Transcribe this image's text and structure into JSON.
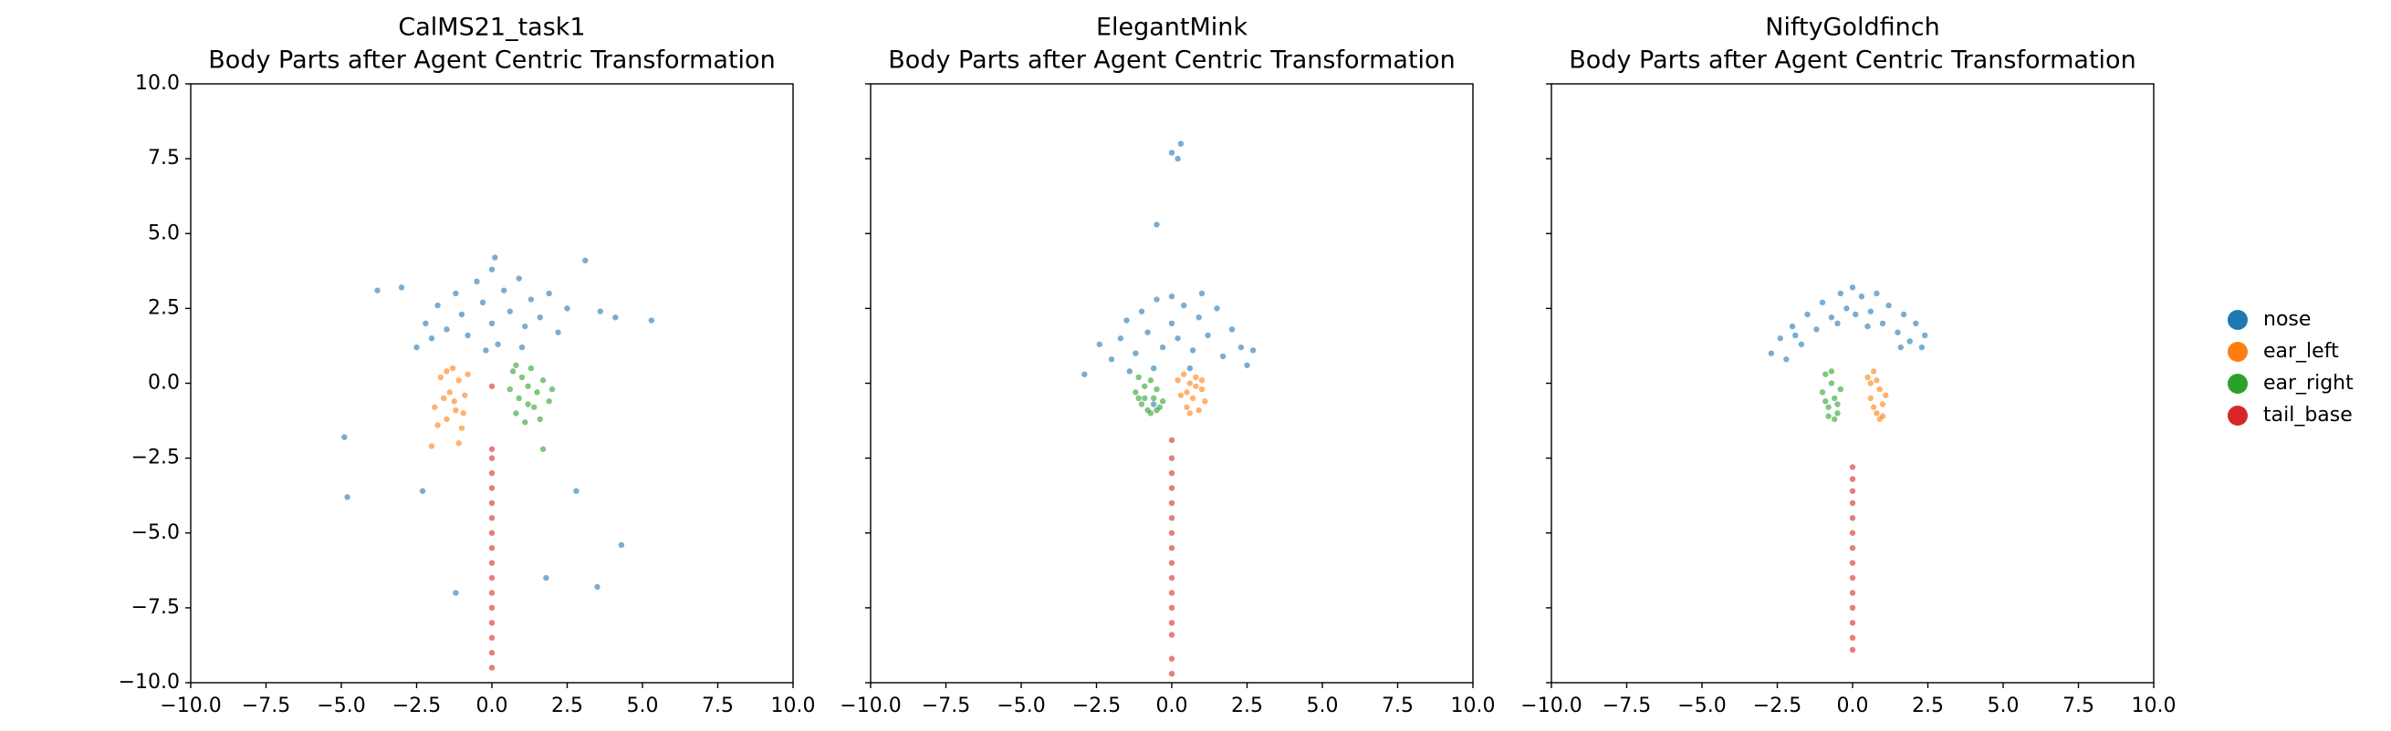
{
  "chart_data": [
    {
      "type": "scatter",
      "title": "CalMS21_task1",
      "subtitle": "Body Parts after Agent Centric Transformation",
      "xlim": [
        -10,
        10
      ],
      "ylim": [
        -10,
        10
      ],
      "xticks": [
        {
          "value": -10,
          "label": "−10.0"
        },
        {
          "value": -7.5,
          "label": "−7.5"
        },
        {
          "value": -5,
          "label": "−5.0"
        },
        {
          "value": -2.5,
          "label": "−2.5"
        },
        {
          "value": 0,
          "label": "0.0"
        },
        {
          "value": 2.5,
          "label": "2.5"
        },
        {
          "value": 5,
          "label": "5.0"
        },
        {
          "value": 7.5,
          "label": "7.5"
        },
        {
          "value": 10,
          "label": "10.0"
        }
      ],
      "yticks": [
        {
          "value": -10,
          "label": "−10.0"
        },
        {
          "value": -7.5,
          "label": "−7.5"
        },
        {
          "value": -5,
          "label": "−5.0"
        },
        {
          "value": -2.5,
          "label": "−2.5"
        },
        {
          "value": 0,
          "label": "0.0"
        },
        {
          "value": 2.5,
          "label": "2.5"
        },
        {
          "value": 5,
          "label": "5.0"
        },
        {
          "value": 7.5,
          "label": "7.5"
        },
        {
          "value": 10,
          "label": "10.0"
        }
      ],
      "legend": "right",
      "series": [
        {
          "name": "nose",
          "color": "#1f77b4",
          "x": [
            -2.2,
            -1.8,
            -1.5,
            -1.2,
            -1.0,
            -0.8,
            -0.5,
            -0.3,
            0,
            0,
            0.2,
            0.4,
            0.6,
            0.9,
            1.1,
            1.3,
            1.6,
            1.9,
            2.2,
            2.5,
            -2.5,
            -0.2,
            1.0,
            0.1,
            -3.0,
            -3.8,
            3.6,
            4.1,
            5.3,
            3.1,
            -4.9,
            -4.8,
            -2.3,
            -1.2,
            1.8,
            3.5,
            4.3,
            2.8,
            -2.0
          ],
          "values": [
            2.0,
            2.6,
            1.8,
            3.0,
            2.3,
            1.6,
            3.4,
            2.7,
            2.0,
            3.8,
            1.3,
            3.1,
            2.4,
            3.5,
            1.9,
            2.8,
            2.2,
            3.0,
            1.7,
            2.5,
            1.2,
            1.1,
            1.2,
            4.2,
            3.2,
            3.1,
            2.4,
            2.2,
            2.1,
            4.1,
            -1.8,
            -3.8,
            -3.6,
            -7.0,
            -6.5,
            -6.8,
            -5.4,
            -3.6,
            1.5
          ]
        },
        {
          "name": "ear_left",
          "color": "#ff7f0e",
          "x": [
            -1.9,
            -1.7,
            -1.5,
            -1.4,
            -1.3,
            -1.2,
            -1.1,
            -1.0,
            -0.9,
            -0.8,
            -1.6,
            -1.8,
            -1.25,
            -0.95,
            -1.5,
            -2.0,
            -1.1
          ],
          "values": [
            -0.8,
            0.2,
            -1.2,
            -0.3,
            0.5,
            -0.9,
            0.1,
            -1.5,
            -0.4,
            0.3,
            -0.5,
            -1.4,
            -0.6,
            -1.0,
            0.4,
            -2.1,
            -2.0
          ]
        },
        {
          "name": "ear_right",
          "color": "#2ca02c",
          "x": [
            0.6,
            0.7,
            0.8,
            0.9,
            1.0,
            1.1,
            1.2,
            1.3,
            1.4,
            1.5,
            1.7,
            1.9,
            1.2,
            0.8,
            1.6,
            2.0,
            1.7
          ],
          "values": [
            -0.2,
            0.4,
            -1.0,
            -0.5,
            0.2,
            -1.3,
            -0.1,
            0.5,
            -0.8,
            -0.3,
            0.1,
            -0.6,
            -0.7,
            0.6,
            -1.2,
            -0.2,
            -2.2
          ]
        },
        {
          "name": "tail_base",
          "color": "#d62728",
          "x": [
            0,
            0,
            0,
            0,
            0,
            0,
            0,
            0,
            0,
            0,
            0,
            0,
            0,
            0,
            0,
            0,
            0
          ],
          "values": [
            -0.1,
            -2.2,
            -2.5,
            -3,
            -3.5,
            -4,
            -4.5,
            -5,
            -5.5,
            -6,
            -6.5,
            -7,
            -7.5,
            -8,
            -8.5,
            -9,
            -9.5
          ]
        }
      ]
    },
    {
      "type": "scatter",
      "title": "ElegantMink",
      "subtitle": "Body Parts after Agent Centric Transformation",
      "xlim": [
        -10,
        10
      ],
      "ylim": [
        -10,
        10
      ],
      "xticks": [
        {
          "value": -10,
          "label": "−10.0"
        },
        {
          "value": -7.5,
          "label": "−7.5"
        },
        {
          "value": -5,
          "label": "−5.0"
        },
        {
          "value": -2.5,
          "label": "−2.5"
        },
        {
          "value": 0,
          "label": "0.0"
        },
        {
          "value": 2.5,
          "label": "2.5"
        },
        {
          "value": 5,
          "label": "5.0"
        },
        {
          "value": 7.5,
          "label": "7.5"
        },
        {
          "value": 10,
          "label": "10.0"
        }
      ],
      "yticks": [
        -10,
        -7.5,
        -5,
        -2.5,
        0,
        2.5,
        5,
        7.5,
        10
      ],
      "series": [
        {
          "name": "nose",
          "color": "#1f77b4",
          "x": [
            -2.0,
            -1.7,
            -1.5,
            -1.2,
            -1.0,
            -0.8,
            -0.5,
            -0.3,
            0,
            0,
            0.2,
            0.4,
            0.7,
            0.9,
            1.2,
            1.5,
            1.7,
            2.0,
            2.3,
            2.5,
            -2.4,
            -0.6,
            0.6,
            -2.9,
            -0.5,
            0,
            0.2,
            0.3,
            -0.6,
            2.7,
            -1.4,
            1.0
          ],
          "values": [
            0.8,
            1.5,
            2.1,
            1.0,
            2.4,
            1.7,
            2.8,
            1.2,
            2.0,
            2.9,
            1.5,
            2.6,
            1.1,
            2.2,
            1.6,
            2.5,
            0.9,
            1.8,
            1.2,
            0.6,
            1.3,
            0.5,
            0.5,
            0.3,
            5.3,
            7.7,
            7.5,
            8.0,
            -0.7,
            1.1,
            0.4,
            3.0
          ]
        },
        {
          "name": "ear_left",
          "color": "#ff7f0e",
          "x": [
            0.2,
            0.3,
            0.4,
            0.5,
            0.6,
            0.7,
            0.8,
            0.9,
            1.0,
            1.1,
            0.5,
            0.8,
            0.6,
            1.0
          ],
          "values": [
            0.1,
            -0.4,
            0.3,
            -0.8,
            0.0,
            -0.5,
            0.2,
            -0.9,
            -0.2,
            -0.6,
            -0.3,
            -0.1,
            -1.0,
            0.1
          ]
        },
        {
          "name": "ear_right",
          "color": "#2ca02c",
          "x": [
            -1.2,
            -1.1,
            -1.0,
            -0.9,
            -0.8,
            -0.7,
            -0.6,
            -0.5,
            -0.4,
            -0.3,
            -0.9,
            -0.7,
            -1.1,
            -0.5
          ],
          "values": [
            -0.3,
            0.2,
            -0.7,
            -0.1,
            -0.9,
            0.1,
            -0.5,
            -0.2,
            -0.8,
            -0.6,
            -0.5,
            -1.0,
            -0.5,
            -0.9
          ]
        },
        {
          "name": "tail_base",
          "color": "#d62728",
          "x": [
            0,
            0,
            0,
            0,
            0,
            0,
            0,
            0,
            0,
            0,
            0,
            0,
            0,
            0,
            0,
            0
          ],
          "values": [
            -1.9,
            -2.5,
            -3,
            -3.5,
            -4,
            -4.5,
            -5,
            -5.5,
            -6,
            -6.5,
            -7,
            -7.5,
            -8,
            -8.4,
            -9.2,
            -9.7
          ]
        }
      ]
    },
    {
      "type": "scatter",
      "title": "NiftyGoldfinch",
      "subtitle": "Body Parts after Agent Centric Transformation",
      "xlim": [
        -10,
        10
      ],
      "ylim": [
        -10,
        10
      ],
      "xticks": [
        {
          "value": -10,
          "label": "−10.0"
        },
        {
          "value": -7.5,
          "label": "−7.5"
        },
        {
          "value": -5,
          "label": "−5.0"
        },
        {
          "value": -2.5,
          "label": "−2.5"
        },
        {
          "value": 0,
          "label": "0.0"
        },
        {
          "value": 2.5,
          "label": "2.5"
        },
        {
          "value": 5,
          "label": "5.0"
        },
        {
          "value": 7.5,
          "label": "7.5"
        },
        {
          "value": 10,
          "label": "10.0"
        }
      ],
      "yticks": [
        -10,
        -7.5,
        -5,
        -2.5,
        0,
        2.5,
        5,
        7.5,
        10
      ],
      "series": [
        {
          "name": "nose",
          "color": "#1f77b4",
          "x": [
            -2.7,
            -2.4,
            -2.2,
            -2.0,
            -1.7,
            -1.5,
            -1.2,
            -1.0,
            -0.7,
            -0.4,
            -0.2,
            0,
            0.1,
            0.3,
            0.6,
            0.8,
            1.0,
            1.2,
            1.5,
            1.7,
            1.9,
            2.1,
            2.3,
            2.4,
            -0.5,
            0.5,
            -1.9,
            1.6
          ],
          "values": [
            1.0,
            1.5,
            0.8,
            1.9,
            1.3,
            2.3,
            1.8,
            2.7,
            2.2,
            3.0,
            2.5,
            3.2,
            2.3,
            2.9,
            2.4,
            3.0,
            2.0,
            2.6,
            1.7,
            2.3,
            1.4,
            2.0,
            1.2,
            1.6,
            2.0,
            1.9,
            1.6,
            1.2
          ]
        },
        {
          "name": "ear_left",
          "color": "#ff7f0e",
          "x": [
            0.5,
            0.6,
            0.7,
            0.8,
            0.9,
            1.0,
            1.1,
            0.7,
            0.9,
            0.8,
            1.0,
            0.6
          ],
          "values": [
            0.2,
            -0.5,
            0.4,
            -1.0,
            -0.2,
            -0.7,
            -0.4,
            -0.8,
            -1.2,
            0.1,
            -1.1,
            0.0
          ]
        },
        {
          "name": "ear_right",
          "color": "#2ca02c",
          "x": [
            -1.0,
            -0.9,
            -0.8,
            -0.7,
            -0.6,
            -0.5,
            -0.4,
            -0.9,
            -0.6,
            -0.7,
            -0.5,
            -0.8
          ],
          "values": [
            -0.3,
            0.3,
            -0.8,
            0.0,
            -0.5,
            -1.0,
            -0.2,
            -0.6,
            -1.2,
            0.4,
            -0.7,
            -1.1
          ]
        },
        {
          "name": "tail_base",
          "color": "#d62728",
          "x": [
            0,
            0,
            0,
            0,
            0,
            0,
            0,
            0,
            0,
            0,
            0,
            0,
            0,
            0
          ],
          "values": [
            -2.8,
            -3.2,
            -3.6,
            -4,
            -4.5,
            -5,
            -5.5,
            -6,
            -6.5,
            -7,
            -7.5,
            -8,
            -8.5,
            -8.9
          ]
        }
      ]
    }
  ]
}
